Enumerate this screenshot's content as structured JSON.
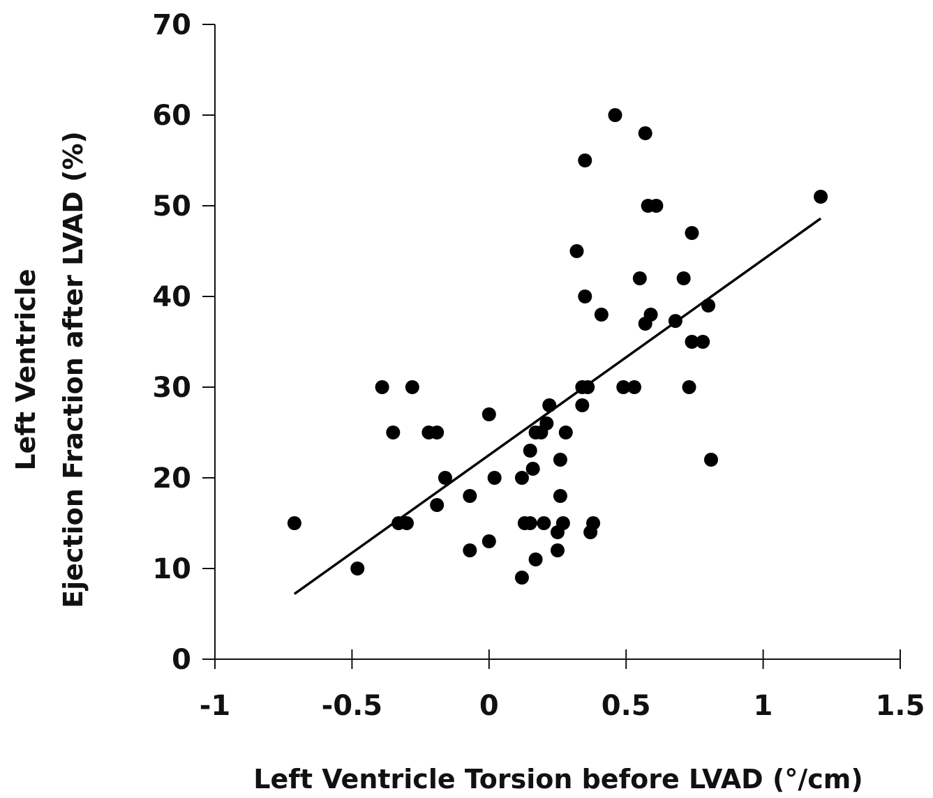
{
  "chart_data": {
    "type": "scatter",
    "xlabel": "Left Ventricle Torsion before LVAD (°/cm)",
    "ylabel_line1": "Left Ventricle",
    "ylabel_line2": "Ejection Fraction after LVAD  (%)",
    "xlim": [
      -1,
      1.5
    ],
    "ylim": [
      0,
      70
    ],
    "x_ticks": [
      -1,
      -0.5,
      0,
      0.5,
      1,
      1.5
    ],
    "x_tick_labels": [
      "-1",
      "-0.5",
      "0",
      "0.5",
      "1",
      "1.5"
    ],
    "y_ticks": [
      0,
      10,
      20,
      30,
      40,
      50,
      60,
      70
    ],
    "y_tick_labels": [
      "0",
      "10",
      "20",
      "30",
      "40",
      "50",
      "60",
      "70"
    ],
    "grid": false,
    "marker_color": "#000000",
    "points": [
      {
        "x": -0.71,
        "y": 15
      },
      {
        "x": -0.48,
        "y": 10
      },
      {
        "x": -0.39,
        "y": 30
      },
      {
        "x": -0.35,
        "y": 25
      },
      {
        "x": -0.33,
        "y": 15
      },
      {
        "x": -0.3,
        "y": 15
      },
      {
        "x": -0.28,
        "y": 30
      },
      {
        "x": -0.22,
        "y": 25
      },
      {
        "x": -0.19,
        "y": 25
      },
      {
        "x": -0.19,
        "y": 17
      },
      {
        "x": -0.16,
        "y": 20
      },
      {
        "x": -0.07,
        "y": 18
      },
      {
        "x": -0.07,
        "y": 12
      },
      {
        "x": 0.0,
        "y": 27
      },
      {
        "x": 0.0,
        "y": 13
      },
      {
        "x": 0.02,
        "y": 20
      },
      {
        "x": 0.12,
        "y": 9
      },
      {
        "x": 0.12,
        "y": 20
      },
      {
        "x": 0.13,
        "y": 15
      },
      {
        "x": 0.15,
        "y": 15
      },
      {
        "x": 0.15,
        "y": 23
      },
      {
        "x": 0.16,
        "y": 21
      },
      {
        "x": 0.17,
        "y": 25
      },
      {
        "x": 0.17,
        "y": 11
      },
      {
        "x": 0.19,
        "y": 25
      },
      {
        "x": 0.2,
        "y": 15
      },
      {
        "x": 0.21,
        "y": 26
      },
      {
        "x": 0.22,
        "y": 28
      },
      {
        "x": 0.25,
        "y": 14
      },
      {
        "x": 0.25,
        "y": 12
      },
      {
        "x": 0.26,
        "y": 22
      },
      {
        "x": 0.26,
        "y": 18
      },
      {
        "x": 0.27,
        "y": 15
      },
      {
        "x": 0.28,
        "y": 25
      },
      {
        "x": 0.32,
        "y": 45
      },
      {
        "x": 0.34,
        "y": 30
      },
      {
        "x": 0.34,
        "y": 28
      },
      {
        "x": 0.35,
        "y": 55
      },
      {
        "x": 0.35,
        "y": 40
      },
      {
        "x": 0.36,
        "y": 30
      },
      {
        "x": 0.37,
        "y": 14
      },
      {
        "x": 0.38,
        "y": 15
      },
      {
        "x": 0.41,
        "y": 38
      },
      {
        "x": 0.46,
        "y": 60
      },
      {
        "x": 0.49,
        "y": 30
      },
      {
        "x": 0.53,
        "y": 30
      },
      {
        "x": 0.55,
        "y": 42
      },
      {
        "x": 0.57,
        "y": 58
      },
      {
        "x": 0.57,
        "y": 37
      },
      {
        "x": 0.58,
        "y": 50
      },
      {
        "x": 0.59,
        "y": 38
      },
      {
        "x": 0.61,
        "y": 50
      },
      {
        "x": 0.68,
        "y": 37.3
      },
      {
        "x": 0.71,
        "y": 42
      },
      {
        "x": 0.73,
        "y": 30
      },
      {
        "x": 0.74,
        "y": 35
      },
      {
        "x": 0.74,
        "y": 47
      },
      {
        "x": 0.78,
        "y": 35
      },
      {
        "x": 0.8,
        "y": 39
      },
      {
        "x": 0.81,
        "y": 22
      },
      {
        "x": 1.21,
        "y": 51
      }
    ],
    "trendline": {
      "x": [
        -0.71,
        1.21
      ],
      "y": [
        7.2,
        48.6
      ]
    }
  }
}
